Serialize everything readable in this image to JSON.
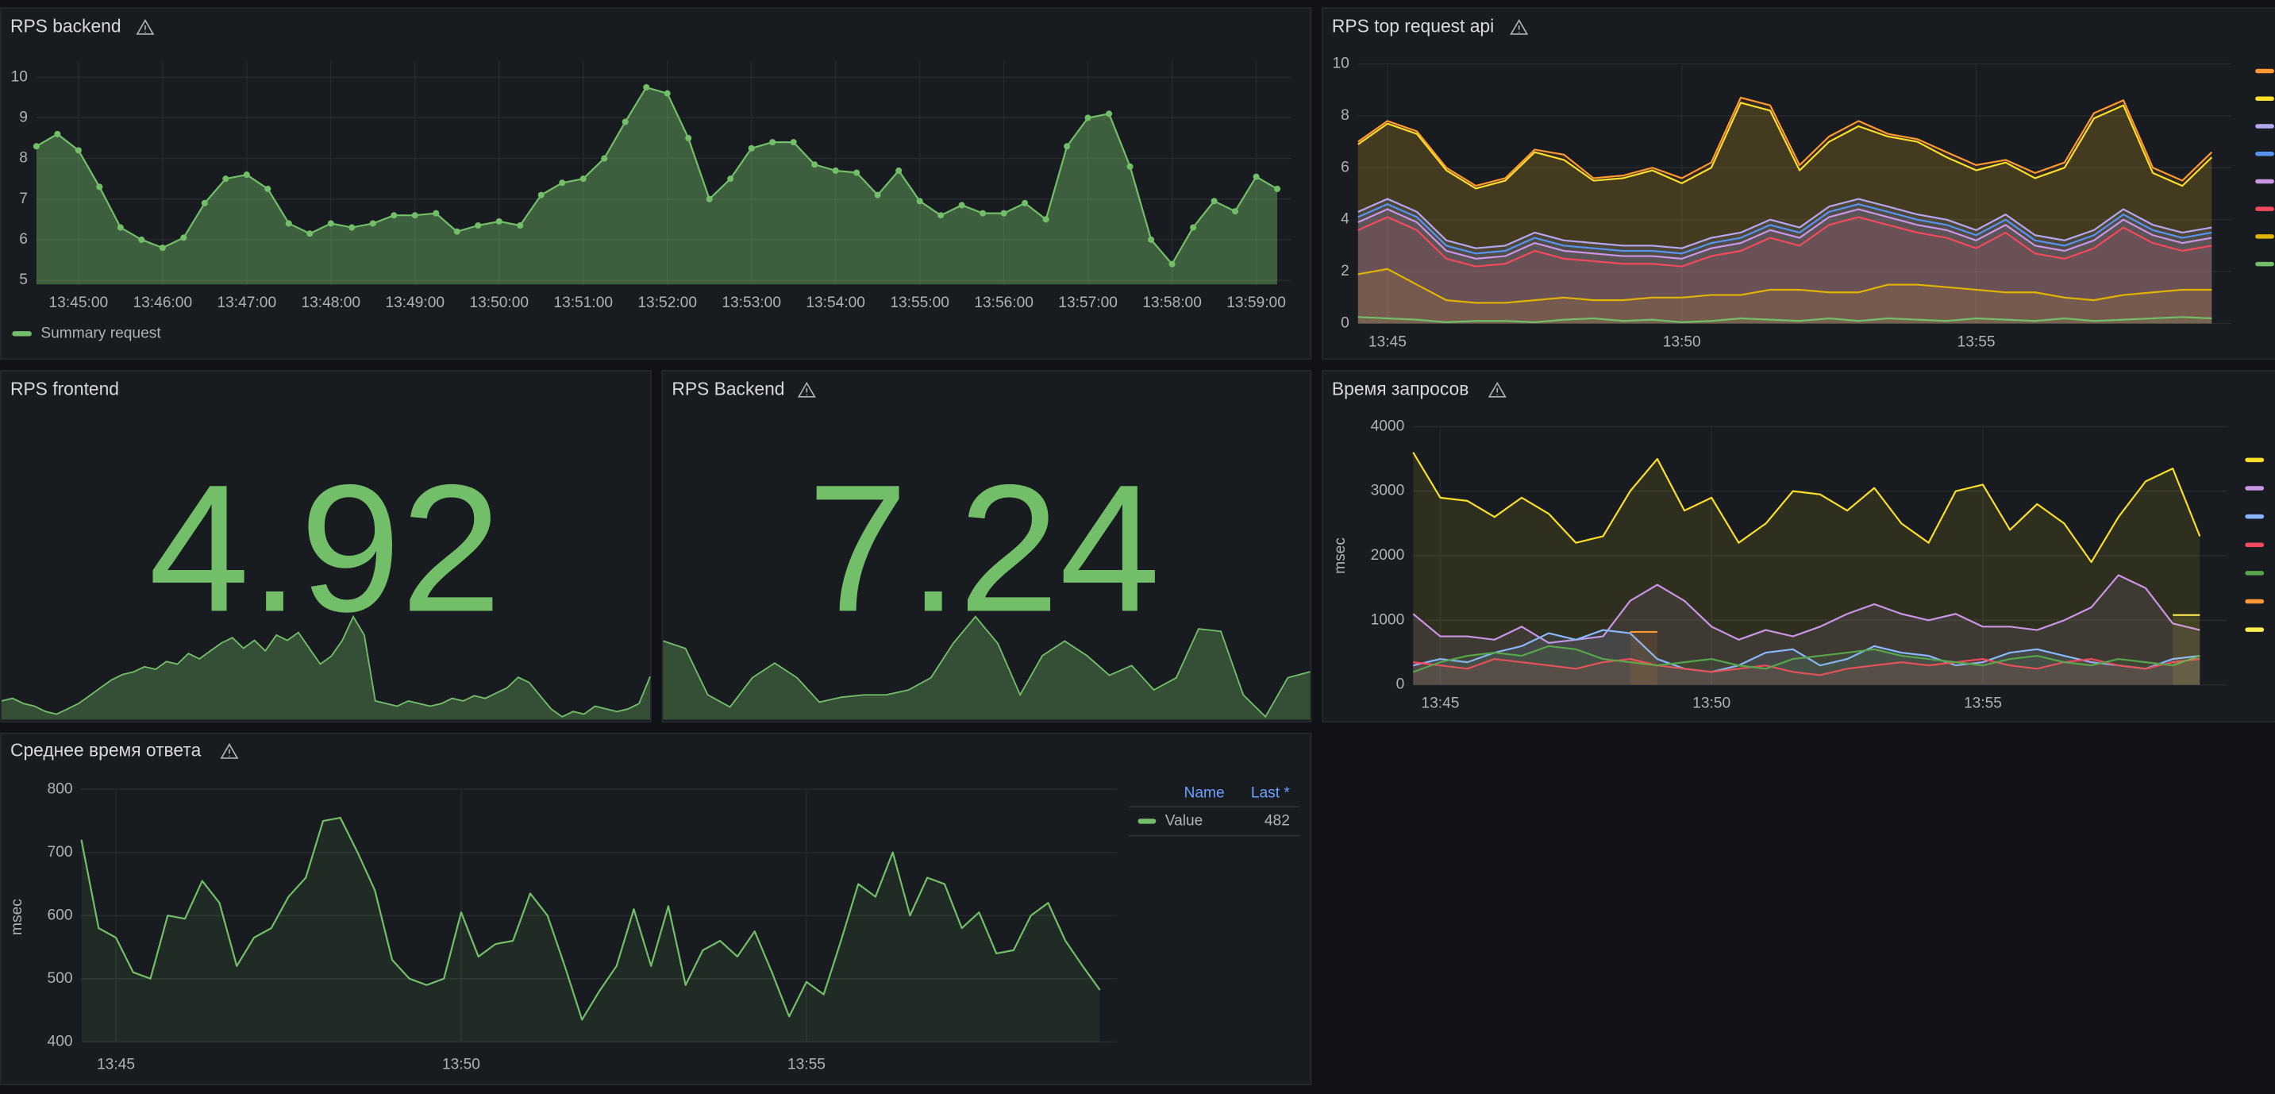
{
  "chart_data": [
    {
      "type": "line",
      "title": "RPS backend",
      "points": true,
      "x": [
        "13:44:30",
        "13:44:45",
        "13:45:00",
        "13:45:15",
        "13:45:30",
        "13:45:45",
        "13:46:00",
        "13:46:15",
        "13:46:30",
        "13:46:45",
        "13:47:00",
        "13:47:15",
        "13:47:30",
        "13:47:45",
        "13:48:00",
        "13:48:15",
        "13:48:30",
        "13:48:45",
        "13:49:00",
        "13:49:15",
        "13:49:30",
        "13:49:45",
        "13:50:00",
        "13:50:15",
        "13:50:30",
        "13:50:45",
        "13:51:00",
        "13:51:15",
        "13:51:30",
        "13:51:45",
        "13:52:00",
        "13:52:15",
        "13:52:30",
        "13:52:45",
        "13:53:00",
        "13:53:15",
        "13:53:30",
        "13:53:45",
        "13:54:00",
        "13:54:15",
        "13:54:30",
        "13:54:45",
        "13:55:00",
        "13:55:15",
        "13:55:30",
        "13:55:45",
        "13:56:00",
        "13:56:15",
        "13:56:30",
        "13:56:45",
        "13:57:00",
        "13:57:15",
        "13:57:30",
        "13:57:45",
        "13:58:00",
        "13:58:15",
        "13:58:30",
        "13:58:45",
        "13:59:00",
        "13:59:15"
      ],
      "series": [
        {
          "name": "Summary request",
          "color": "#73bf69",
          "values": [
            8.3,
            8.6,
            8.2,
            7.3,
            6.3,
            6.0,
            5.8,
            6.05,
            6.9,
            7.5,
            7.6,
            7.25,
            6.4,
            6.15,
            6.4,
            6.3,
            6.4,
            6.6,
            6.6,
            6.65,
            6.2,
            6.35,
            6.45,
            6.35,
            7.1,
            7.4,
            7.5,
            8.0,
            8.9,
            9.75,
            9.6,
            8.5,
            7.0,
            7.5,
            8.25,
            8.4,
            8.4,
            7.85,
            7.7,
            7.65,
            7.1,
            7.7,
            6.95,
            6.6,
            6.85,
            6.65,
            6.65,
            6.9,
            6.5,
            8.3,
            9.0,
            9.1,
            7.8,
            6.0,
            5.4,
            6.3,
            6.95,
            6.7,
            7.55,
            7.25
          ]
        }
      ],
      "xlim": [
        "13:44:30",
        "13:59:25"
      ],
      "xticks": [
        "13:45:00",
        "13:46:00",
        "13:47:00",
        "13:48:00",
        "13:49:00",
        "13:50:00",
        "13:51:00",
        "13:52:00",
        "13:53:00",
        "13:54:00",
        "13:55:00",
        "13:56:00",
        "13:57:00",
        "13:58:00",
        "13:59:00"
      ],
      "ylim": [
        4.9,
        10.4
      ],
      "yticks": [
        5,
        6,
        7,
        8,
        9,
        10
      ],
      "grid": true,
      "legend": "bottom"
    },
    {
      "type": "line",
      "title": "RPS top request api",
      "x": [
        "13:44:30",
        "13:45:00",
        "13:45:30",
        "13:46:00",
        "13:46:30",
        "13:47:00",
        "13:47:30",
        "13:48:00",
        "13:48:30",
        "13:49:00",
        "13:49:30",
        "13:50:00",
        "13:50:30",
        "13:51:00",
        "13:51:30",
        "13:52:00",
        "13:52:30",
        "13:53:00",
        "13:53:30",
        "13:54:00",
        "13:54:30",
        "13:55:00",
        "13:55:30",
        "13:56:00",
        "13:56:30",
        "13:57:00",
        "13:57:30",
        "13:58:00",
        "13:58:30",
        "13:59:00"
      ],
      "series": [
        {
          "color": "#ff9830",
          "values": [
            7.0,
            7.8,
            7.4,
            6.0,
            5.3,
            5.6,
            6.7,
            6.5,
            5.6,
            5.7,
            6.0,
            5.6,
            6.2,
            8.7,
            8.4,
            6.1,
            7.2,
            7.8,
            7.3,
            7.1,
            6.6,
            6.1,
            6.3,
            5.8,
            6.2,
            8.1,
            8.6,
            6.0,
            5.5,
            6.6
          ]
        },
        {
          "color": "#fade2a",
          "values": [
            6.9,
            7.7,
            7.3,
            5.9,
            5.2,
            5.5,
            6.6,
            6.3,
            5.5,
            5.6,
            5.9,
            5.4,
            6.0,
            8.5,
            8.2,
            5.9,
            7.0,
            7.6,
            7.2,
            7.0,
            6.4,
            5.9,
            6.2,
            5.6,
            6.0,
            7.9,
            8.4,
            5.8,
            5.3,
            6.4
          ]
        },
        {
          "color": "#b4a7f0",
          "values": [
            4.3,
            4.8,
            4.3,
            3.2,
            2.9,
            3.0,
            3.5,
            3.2,
            3.1,
            3.0,
            3.0,
            2.9,
            3.3,
            3.5,
            4.0,
            3.7,
            4.5,
            4.8,
            4.5,
            4.2,
            4.0,
            3.6,
            4.2,
            3.4,
            3.2,
            3.6,
            4.4,
            3.8,
            3.5,
            3.7
          ]
        },
        {
          "color": "#5794f2",
          "values": [
            4.1,
            4.6,
            4.1,
            3.0,
            2.7,
            2.8,
            3.3,
            3.0,
            2.9,
            2.8,
            2.8,
            2.7,
            3.1,
            3.3,
            3.8,
            3.5,
            4.3,
            4.6,
            4.3,
            4.0,
            3.8,
            3.4,
            4.0,
            3.2,
            3.0,
            3.4,
            4.2,
            3.6,
            3.3,
            3.5
          ]
        },
        {
          "color": "#ca95e5",
          "values": [
            3.9,
            4.4,
            3.9,
            2.8,
            2.5,
            2.6,
            3.1,
            2.8,
            2.7,
            2.6,
            2.6,
            2.5,
            2.9,
            3.1,
            3.6,
            3.3,
            4.1,
            4.4,
            4.1,
            3.8,
            3.6,
            3.2,
            3.8,
            3.0,
            2.8,
            3.2,
            4.0,
            3.4,
            3.1,
            3.3
          ]
        },
        {
          "color": "#f2495c",
          "values": [
            3.6,
            4.1,
            3.6,
            2.5,
            2.2,
            2.3,
            2.8,
            2.5,
            2.4,
            2.3,
            2.3,
            2.2,
            2.6,
            2.8,
            3.3,
            3.0,
            3.8,
            4.1,
            3.8,
            3.5,
            3.3,
            2.9,
            3.5,
            2.7,
            2.5,
            2.9,
            3.7,
            3.1,
            2.8,
            3.0
          ]
        },
        {
          "color": "#e0b400",
          "values": [
            1.9,
            2.1,
            1.5,
            0.9,
            0.8,
            0.8,
            0.9,
            1.0,
            0.9,
            0.9,
            1.0,
            1.0,
            1.1,
            1.1,
            1.3,
            1.3,
            1.2,
            1.2,
            1.5,
            1.5,
            1.4,
            1.3,
            1.2,
            1.2,
            1.0,
            0.9,
            1.1,
            1.2,
            1.3,
            1.3
          ]
        },
        {
          "color": "#73bf69",
          "values": [
            0.25,
            0.2,
            0.15,
            0.05,
            0.1,
            0.1,
            0.05,
            0.15,
            0.2,
            0.1,
            0.15,
            0.05,
            0.1,
            0.2,
            0.15,
            0.1,
            0.2,
            0.1,
            0.2,
            0.15,
            0.1,
            0.2,
            0.15,
            0.1,
            0.2,
            0.1,
            0.15,
            0.2,
            0.25,
            0.2
          ]
        }
      ],
      "xlim": [
        "13:44:30",
        "13:59:20"
      ],
      "xticks": [
        "13:45",
        "13:50",
        "13:55"
      ],
      "ylim": [
        0,
        10
      ],
      "yticks": [
        0,
        2,
        4,
        6,
        8,
        10
      ],
      "grid": true,
      "legend": "right"
    },
    {
      "type": "stat",
      "title": "RPS frontend",
      "value": 4.92,
      "color": "#73bf69",
      "sparkline": [
        4.0,
        4.1,
        3.9,
        3.8,
        3.6,
        3.5,
        3.7,
        3.9,
        4.2,
        4.5,
        4.8,
        5.0,
        5.1,
        5.3,
        5.2,
        5.5,
        5.4,
        5.8,
        5.6,
        5.9,
        6.2,
        6.4,
        6.0,
        6.3,
        5.9,
        6.5,
        6.3,
        6.6,
        6.0,
        5.4,
        5.7,
        6.3,
        7.2,
        6.5,
        4.0,
        3.9,
        3.8,
        4.0,
        3.9,
        3.8,
        3.9,
        4.1,
        4.0,
        4.2,
        4.1,
        4.3,
        4.5,
        4.9,
        4.7,
        4.2,
        3.7,
        3.4,
        3.6,
        3.5,
        3.8,
        3.7,
        3.6,
        3.7,
        3.9,
        4.92
      ]
    },
    {
      "type": "stat",
      "title": "RPS Backend",
      "value": 7.24,
      "color": "#73bf69",
      "sparkline": [
        8.5,
        8.2,
        6.3,
        5.8,
        7.0,
        7.6,
        7.0,
        6.0,
        6.2,
        6.3,
        6.3,
        6.5,
        7.0,
        8.4,
        9.5,
        8.4,
        6.3,
        7.9,
        8.5,
        7.9,
        7.1,
        7.5,
        6.5,
        7.0,
        9.0,
        8.9,
        6.3,
        5.4,
        7.0,
        7.24
      ]
    },
    {
      "type": "line",
      "title": "Время запросов",
      "y_label": "msec",
      "x": [
        "13:44:30",
        "13:45:00",
        "13:45:30",
        "13:46:00",
        "13:46:30",
        "13:47:00",
        "13:47:30",
        "13:48:00",
        "13:48:30",
        "13:49:00",
        "13:49:30",
        "13:50:00",
        "13:50:30",
        "13:51:00",
        "13:51:30",
        "13:52:00",
        "13:52:30",
        "13:53:00",
        "13:53:30",
        "13:54:00",
        "13:54:30",
        "13:55:00",
        "13:55:30",
        "13:56:00",
        "13:56:30",
        "13:57:00",
        "13:57:30",
        "13:58:00",
        "13:58:30",
        "13:59:00"
      ],
      "series": [
        {
          "color": "#fade2a",
          "values": [
            3600,
            2900,
            2850,
            2600,
            2900,
            2650,
            2200,
            2300,
            3000,
            3500,
            2700,
            2900,
            2200,
            2500,
            3000,
            2950,
            2700,
            3050,
            2500,
            2200,
            3000,
            3100,
            2400,
            2800,
            2500,
            1900,
            2600,
            3150,
            3350,
            2300
          ]
        },
        {
          "color": "#ca95e5",
          "values": [
            1100,
            750,
            750,
            700,
            900,
            650,
            700,
            750,
            1300,
            1550,
            1300,
            900,
            700,
            850,
            750,
            900,
            1100,
            1250,
            1100,
            1000,
            1100,
            900,
            900,
            850,
            1000,
            1200,
            1700,
            1500,
            950,
            850
          ]
        },
        {
          "color": "#8ab8ff",
          "values": [
            300,
            400,
            350,
            500,
            600,
            800,
            700,
            850,
            800,
            400,
            250,
            200,
            300,
            500,
            550,
            300,
            400,
            600,
            500,
            450,
            300,
            350,
            500,
            550,
            450,
            350,
            300,
            250,
            400,
            450
          ]
        },
        {
          "color": "#f2495c",
          "values": [
            350,
            300,
            250,
            400,
            350,
            300,
            250,
            350,
            400,
            300,
            250,
            200,
            250,
            300,
            200,
            150,
            250,
            300,
            350,
            300,
            350,
            400,
            300,
            250,
            350,
            400,
            300,
            250,
            350,
            400
          ]
        },
        {
          "color": "#56a64b",
          "values": [
            200,
            350,
            450,
            500,
            450,
            600,
            550,
            400,
            350,
            300,
            350,
            400,
            300,
            250,
            400,
            450,
            500,
            550,
            450,
            400,
            350,
            300,
            400,
            450,
            350,
            300,
            400,
            350,
            300,
            450
          ]
        },
        {
          "color": "#ff9830",
          "values": [
            null,
            null,
            null,
            null,
            null,
            null,
            null,
            null,
            820,
            820,
            null,
            null,
            null,
            null,
            null,
            null,
            null,
            null,
            null,
            null,
            null,
            null,
            null,
            null,
            null,
            null,
            null,
            null,
            null,
            null
          ]
        },
        {
          "color": "#ffee52",
          "values": [
            null,
            null,
            null,
            null,
            null,
            null,
            null,
            null,
            null,
            null,
            null,
            null,
            null,
            null,
            null,
            null,
            null,
            null,
            null,
            null,
            null,
            null,
            null,
            null,
            null,
            null,
            null,
            null,
            1080,
            1080
          ]
        }
      ],
      "xlim": [
        "13:44:30",
        "13:59:30"
      ],
      "xticks": [
        "13:45",
        "13:50",
        "13:55"
      ],
      "ylim": [
        0,
        4000
      ],
      "yticks": [
        0,
        1000,
        2000,
        3000,
        4000
      ],
      "grid": true,
      "legend": "right"
    },
    {
      "type": "line",
      "title": "Среднее время ответа",
      "y_label": "msec",
      "legend_headers": [
        "Name",
        "Last *"
      ],
      "x": [
        "13:44:30",
        "13:44:45",
        "13:45:00",
        "13:45:15",
        "13:45:30",
        "13:45:45",
        "13:46:00",
        "13:46:15",
        "13:46:30",
        "13:46:45",
        "13:47:00",
        "13:47:15",
        "13:47:30",
        "13:47:45",
        "13:48:00",
        "13:48:15",
        "13:48:30",
        "13:48:45",
        "13:49:00",
        "13:49:15",
        "13:49:30",
        "13:49:45",
        "13:50:00",
        "13:50:15",
        "13:50:30",
        "13:50:45",
        "13:51:00",
        "13:51:15",
        "13:51:30",
        "13:51:45",
        "13:52:00",
        "13:52:15",
        "13:52:30",
        "13:52:45",
        "13:53:00",
        "13:53:15",
        "13:53:30",
        "13:53:45",
        "13:54:00",
        "13:54:15",
        "13:54:30",
        "13:54:45",
        "13:55:00",
        "13:55:15",
        "13:55:30",
        "13:55:45",
        "13:56:00",
        "13:56:15",
        "13:56:30",
        "13:56:45",
        "13:57:00",
        "13:57:15",
        "13:57:30",
        "13:57:45",
        "13:58:00",
        "13:58:15",
        "13:58:30",
        "13:58:45",
        "13:59:00",
        "13:59:15"
      ],
      "series": [
        {
          "name": "Value",
          "color": "#73bf69",
          "values": [
            720,
            580,
            565,
            510,
            500,
            600,
            595,
            655,
            620,
            520,
            565,
            580,
            630,
            660,
            750,
            755,
            700,
            640,
            530,
            500,
            490,
            500,
            605,
            535,
            555,
            560,
            635,
            600,
            520,
            435,
            480,
            520,
            610,
            520,
            615,
            490,
            545,
            560,
            535,
            575,
            510,
            440,
            495,
            475,
            560,
            650,
            630,
            700,
            600,
            660,
            650,
            580,
            605,
            540,
            545,
            600,
            620,
            560,
            520,
            482
          ]
        }
      ],
      "xlim": [
        "13:44:30",
        "13:59:30"
      ],
      "xticks": [
        "13:45",
        "13:50",
        "13:55"
      ],
      "ylim": [
        400,
        800
      ],
      "yticks": [
        400,
        500,
        600,
        700,
        800
      ],
      "grid": true,
      "legend": "table-right"
    }
  ]
}
